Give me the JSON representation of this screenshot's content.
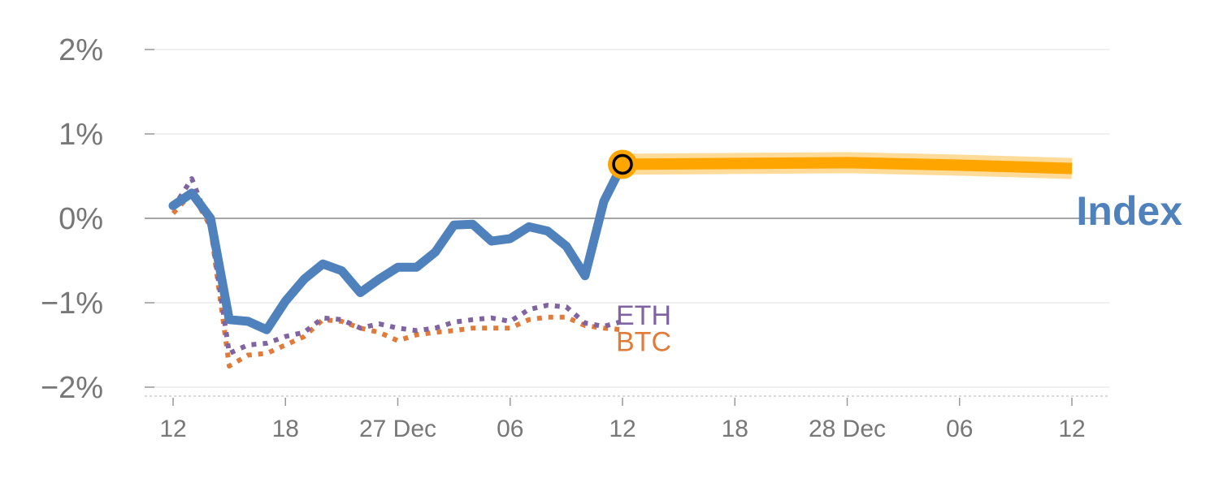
{
  "chart_data": {
    "type": "line",
    "ylim": [
      -2.1,
      2.2
    ],
    "yticks": [
      -2,
      -1,
      0,
      1,
      2
    ],
    "ytick_labels": [
      "−2%",
      "−1%",
      "0%",
      "1%",
      "2%"
    ],
    "xlim": [
      0,
      50
    ],
    "xticks": [
      0,
      6,
      12,
      18,
      24,
      30,
      36,
      42,
      48
    ],
    "xtick_labels": [
      "12",
      "18",
      "27 Dec",
      "06",
      "12",
      "18",
      "28 Dec",
      "06",
      "12"
    ],
    "grid": true,
    "colors": {
      "index": "#4f81bd",
      "eth": "#8064a2",
      "btc": "#e07b39",
      "forecast": "#ffa500",
      "zero_line": "#888888",
      "grid": "#e6e6e6",
      "tick_text": "#777777"
    },
    "series": [
      {
        "name": "Index",
        "style": "solid",
        "x": [
          0,
          1,
          2,
          3,
          4,
          5,
          6,
          7,
          8,
          9,
          10,
          11,
          12,
          13,
          14,
          15,
          16,
          17,
          18,
          19,
          20,
          21,
          22,
          23,
          24
        ],
        "y": [
          0.15,
          0.3,
          0.0,
          -1.2,
          -1.22,
          -1.32,
          -0.98,
          -0.72,
          -0.54,
          -0.62,
          -0.88,
          -0.72,
          -0.58,
          -0.58,
          -0.4,
          -0.08,
          -0.07,
          -0.27,
          -0.24,
          -0.1,
          -0.15,
          -0.33,
          -0.68,
          0.2,
          0.64
        ]
      },
      {
        "name": "ETH",
        "style": "dotted",
        "x": [
          0,
          1,
          2,
          3,
          4,
          5,
          6,
          7,
          8,
          9,
          10,
          11,
          12,
          13,
          14,
          15,
          16,
          17,
          18,
          19,
          20,
          21,
          22,
          23,
          24
        ],
        "y": [
          0.12,
          0.47,
          -0.1,
          -1.6,
          -1.5,
          -1.48,
          -1.4,
          -1.35,
          -1.18,
          -1.2,
          -1.3,
          -1.25,
          -1.3,
          -1.33,
          -1.3,
          -1.23,
          -1.2,
          -1.18,
          -1.22,
          -1.08,
          -1.03,
          -1.05,
          -1.24,
          -1.28,
          -1.22
        ]
      },
      {
        "name": "BTC",
        "style": "dotted",
        "x": [
          0,
          1,
          2,
          3,
          4,
          5,
          6,
          7,
          8,
          9,
          10,
          11,
          12,
          13,
          14,
          15,
          16,
          17,
          18,
          19,
          20,
          21,
          22,
          23,
          24
        ],
        "y": [
          0.06,
          0.3,
          -0.1,
          -1.75,
          -1.62,
          -1.6,
          -1.5,
          -1.4,
          -1.2,
          -1.22,
          -1.3,
          -1.35,
          -1.45,
          -1.38,
          -1.35,
          -1.33,
          -1.3,
          -1.3,
          -1.3,
          -1.2,
          -1.17,
          -1.17,
          -1.27,
          -1.3,
          -1.32
        ]
      },
      {
        "name": "",
        "style": "forecast",
        "x": [
          24,
          30,
          36,
          42,
          48
        ],
        "y": [
          0.64,
          0.65,
          0.66,
          0.63,
          0.59
        ]
      }
    ],
    "annotations": [
      {
        "text": "ETH",
        "series": "ETH"
      },
      {
        "text": "BTC",
        "series": "BTC"
      },
      {
        "text": "Index",
        "series": "Index"
      }
    ]
  }
}
